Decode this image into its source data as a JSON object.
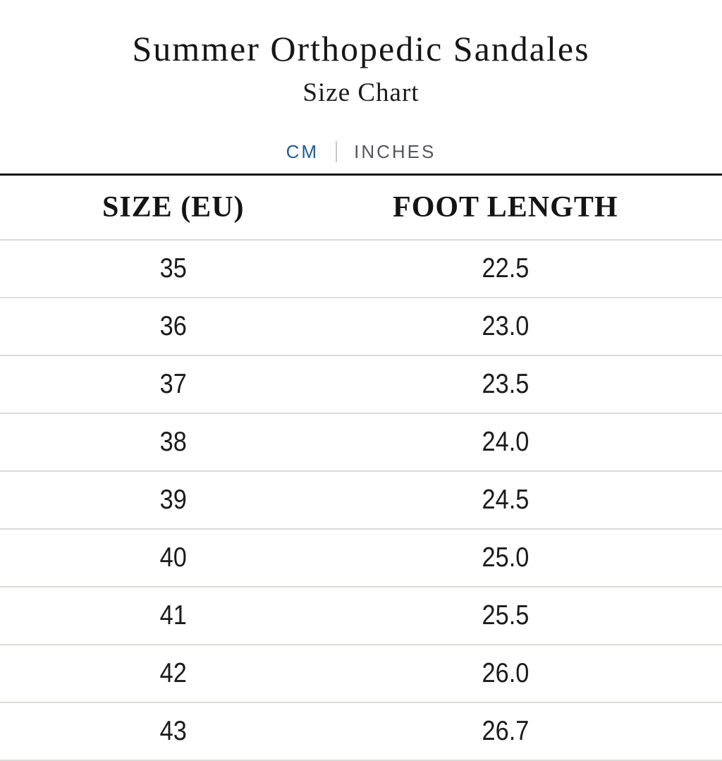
{
  "header": {
    "title": "Summer Orthopedic Sandales",
    "subtitle": "Size Chart"
  },
  "unit_toggle": {
    "options": [
      {
        "label": "CM",
        "active": true
      },
      {
        "label": "INCHES",
        "active": false
      }
    ],
    "active_color": "#1f5b94",
    "inactive_color": "#55565a"
  },
  "table": {
    "columns": [
      "SIZE (EU)",
      "FOOT LENGTH"
    ],
    "rows": [
      [
        "35",
        "22.5"
      ],
      [
        "36",
        "23.0"
      ],
      [
        "37",
        "23.5"
      ],
      [
        "38",
        "24.0"
      ],
      [
        "39",
        "24.5"
      ],
      [
        "40",
        "25.0"
      ],
      [
        "41",
        "25.5"
      ],
      [
        "42",
        "26.0"
      ],
      [
        "43",
        "26.7"
      ]
    ]
  },
  "colors": {
    "heavy_rule": "#141414",
    "row_separator": "#dedbd7",
    "text": "#1b1b1b"
  }
}
